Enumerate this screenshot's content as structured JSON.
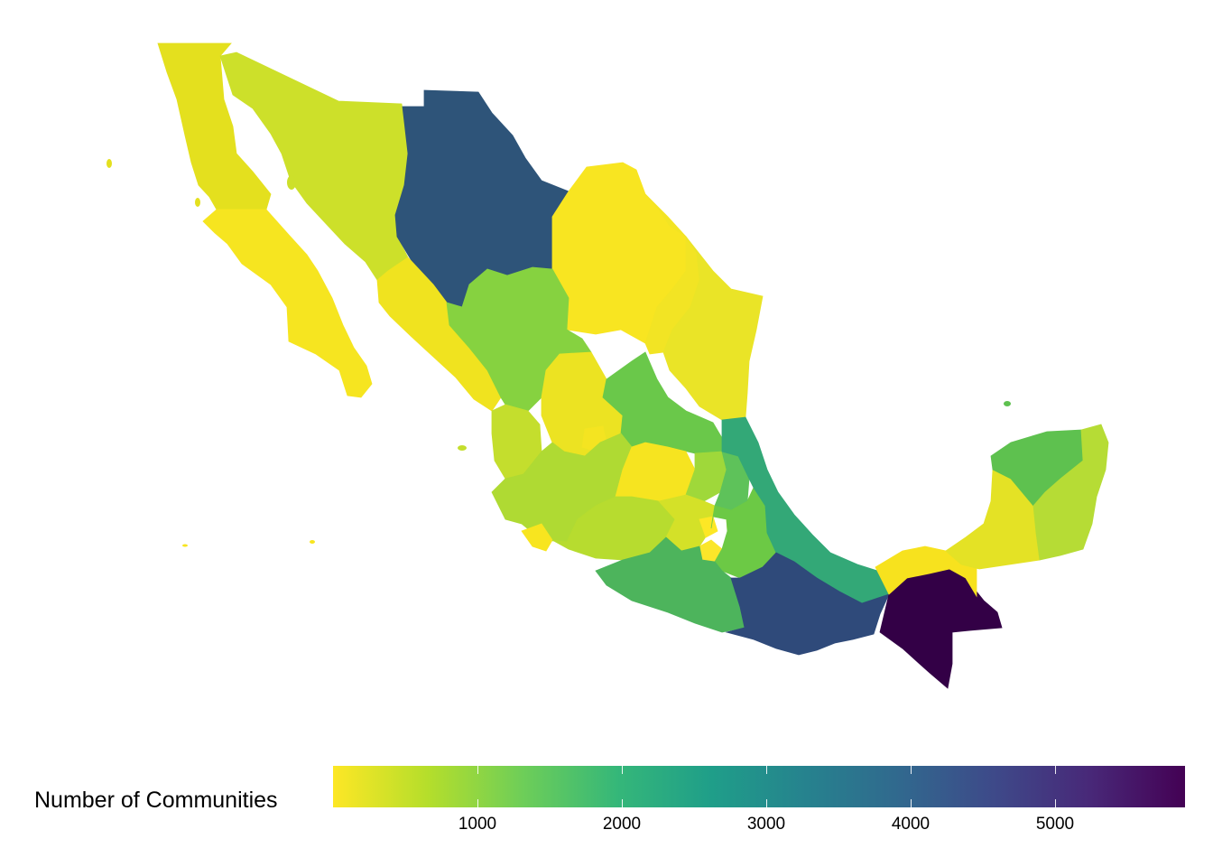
{
  "map": {
    "type": "choropleth",
    "region": "Mexico",
    "colorscale": "viridis (reversed: low = yellow, high = dark purple)",
    "colors": [
      "#fde725",
      "#b5de2b",
      "#6ece58",
      "#35b779",
      "#1f9e89",
      "#26828e",
      "#31688e",
      "#3e4989",
      "#482878",
      "#440154"
    ],
    "states": [
      {
        "state": "Baja California",
        "color": "#e4e01e"
      },
      {
        "state": "Baja California Sur",
        "color": "#f6e520"
      },
      {
        "state": "Sonora",
        "color": "#cde02a"
      },
      {
        "state": "Chihuahua",
        "color": "#2e5479"
      },
      {
        "state": "Coahuila",
        "color": "#f8e521"
      },
      {
        "state": "Nuevo León",
        "color": "#f2e424"
      },
      {
        "state": "Tamaulipas",
        "color": "#eae427"
      },
      {
        "state": "Sinaloa",
        "color": "#f0e31f"
      },
      {
        "state": "Durango",
        "color": "#86d240"
      },
      {
        "state": "Zacatecas",
        "color": "#ece322"
      },
      {
        "state": "San Luis Potosí",
        "color": "#6ac84a"
      },
      {
        "state": "Nayarit",
        "color": "#c4de2d"
      },
      {
        "state": "Aguascalientes",
        "color": "#f4e421"
      },
      {
        "state": "Jalisco",
        "color": "#afda33"
      },
      {
        "state": "Guanajuato",
        "color": "#f6e420"
      },
      {
        "state": "Querétaro",
        "color": "#9fd83a"
      },
      {
        "state": "Hidalgo",
        "color": "#5ec25a"
      },
      {
        "state": "Colima",
        "color": "#f8e51f"
      },
      {
        "state": "Michoacán",
        "color": "#b7dc2f"
      },
      {
        "state": "Estado de México",
        "color": "#d4e128"
      },
      {
        "state": "Ciudad de México",
        "color": "#fde725"
      },
      {
        "state": "Morelos",
        "color": "#fbe62a"
      },
      {
        "state": "Tlaxcala",
        "color": "#f2e428"
      },
      {
        "state": "Puebla",
        "color": "#6cc945"
      },
      {
        "state": "Veracruz",
        "color": "#33a877"
      },
      {
        "state": "Guerrero",
        "color": "#4db45c"
      },
      {
        "state": "Oaxaca",
        "color": "#2f4a7a"
      },
      {
        "state": "Chiapas",
        "color": "#330046"
      },
      {
        "state": "Tabasco",
        "color": "#f7e21e"
      },
      {
        "state": "Campeche",
        "color": "#e4e225"
      },
      {
        "state": "Yucatán",
        "color": "#5ec14f"
      },
      {
        "state": "Quintana Roo",
        "color": "#b6dc35"
      }
    ]
  },
  "legend": {
    "title": "Number of Communities",
    "min": 0,
    "max": 5900,
    "ticks": [
      1000,
      2000,
      3000,
      4000,
      5000
    ],
    "tick_labels": [
      "1000",
      "2000",
      "3000",
      "4000",
      "5000"
    ]
  }
}
